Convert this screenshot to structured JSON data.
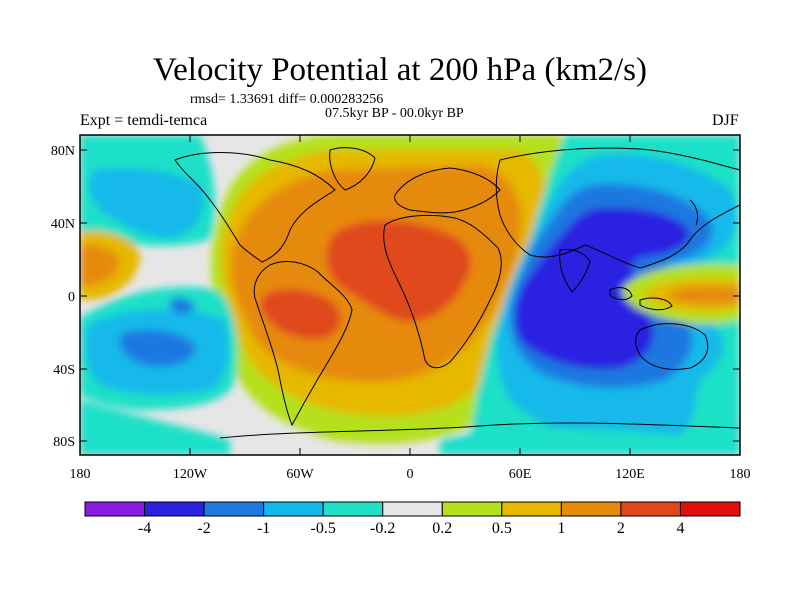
{
  "title": "Velocity Potential at 200 hPa (km2/s)",
  "stats": "rmsd= 1.33691 diff= 0.000283256",
  "experiment": "Expt = temdi-temca",
  "period": "07.5kyr BP - 00.0kyr BP",
  "season": "DJF",
  "map": {
    "projection": "cylindrical equidistant",
    "lon_range": [
      -180,
      180
    ],
    "lat_range": [
      -90,
      90
    ],
    "lat_ticks": [
      "80N",
      "40N",
      "0",
      "40S",
      "80S"
    ],
    "lon_ticks": [
      "180",
      "120W",
      "60W",
      "0",
      "60E",
      "120E",
      "180"
    ],
    "features": [
      {
        "name": "positive-center-africa-atlantic",
        "lon": -10,
        "lat": 15,
        "level": "2 to 4"
      },
      {
        "name": "positive-center-south-america",
        "lon": -60,
        "lat": -10,
        "level": "2 to 4"
      },
      {
        "name": "negative-center-indian-ocean",
        "lon": 100,
        "lat": -10,
        "level": "-4 to -2"
      },
      {
        "name": "negative-center-east-asia",
        "lon": 120,
        "lat": 35,
        "level": "-4 to -2"
      },
      {
        "name": "positive-lobe-west-pacific",
        "lon": 160,
        "lat": 0,
        "level": "0.5 to 2"
      },
      {
        "name": "negative-lobe-southeast-pacific",
        "lon": -140,
        "lat": -25,
        "level": "-2 to -1"
      }
    ]
  },
  "colorbar": {
    "labels": [
      "-4",
      "-2",
      "-1",
      "-0.5",
      "-0.2",
      "0.2",
      "0.5",
      "1",
      "2",
      "4"
    ],
    "colors": [
      "#8a1ee0",
      "#2a22e0",
      "#1f78e0",
      "#12b9ea",
      "#1fe0c8",
      "#e6e6e6",
      "#b5e01e",
      "#e6b800",
      "#e68a0e",
      "#e0481a",
      "#e01010"
    ]
  }
}
